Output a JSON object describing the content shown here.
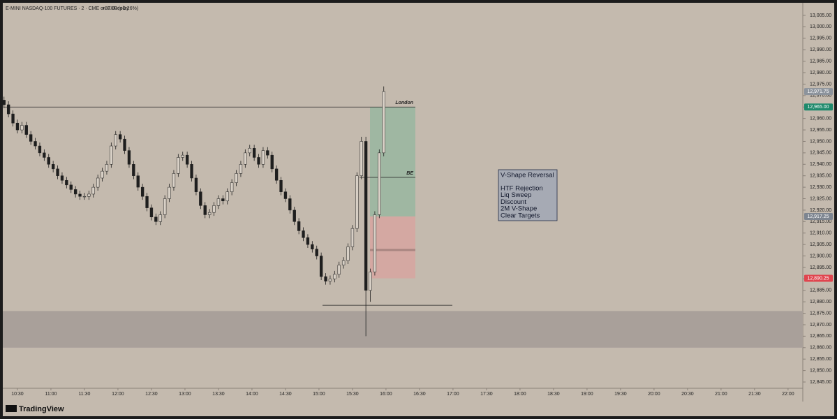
{
  "header": {
    "title": "E-MINI NASDAQ-100 FUTURES · 2 · CME on FXReplay",
    "change": "+33.00 (+0.26%)"
  },
  "chart_data": {
    "type": "candlestick",
    "ohlc": [
      [
        12968,
        12969.5,
        12964.5,
        12966
      ],
      [
        12966,
        12967.5,
        12960.5,
        12962
      ],
      [
        12962,
        12963.5,
        12956.5,
        12958
      ],
      [
        12958,
        12959.5,
        12953.5,
        12955
      ],
      [
        12955,
        12958.5,
        12953.5,
        12957
      ],
      [
        12957,
        12958.5,
        12951.5,
        12953
      ],
      [
        12953,
        12954.5,
        12948.5,
        12950
      ],
      [
        12950,
        12951.5,
        12946.5,
        12948
      ],
      [
        12948,
        12949.5,
        12943.5,
        12945
      ],
      [
        12945,
        12946.5,
        12941.5,
        12943
      ],
      [
        12943,
        12944.5,
        12938.5,
        12940
      ],
      [
        12940,
        12941.5,
        12936.5,
        12938
      ],
      [
        12938,
        12939.5,
        12933.5,
        12935
      ],
      [
        12935,
        12936.5,
        12931.5,
        12933
      ],
      [
        12933,
        12934.5,
        12929.5,
        12931
      ],
      [
        12931,
        12932.5,
        12927.5,
        12929
      ],
      [
        12929,
        12930.5,
        12925.5,
        12927
      ],
      [
        12927,
        12928.5,
        12924.5,
        12926
      ],
      [
        12926,
        12927.5,
        12924.5,
        12926
      ],
      [
        12926,
        12928.5,
        12924.5,
        12927
      ],
      [
        12927,
        12931.5,
        12925.5,
        12930
      ],
      [
        12930,
        12935.5,
        12928.5,
        12934
      ],
      [
        12934,
        12938.5,
        12932.5,
        12937
      ],
      [
        12937,
        12941.5,
        12935.5,
        12940
      ],
      [
        12940,
        12949.5,
        12938.5,
        12948
      ],
      [
        12948,
        12954.5,
        12946.5,
        12953
      ],
      [
        12953,
        12954.5,
        12949.5,
        12951
      ],
      [
        12951,
        12952.5,
        12944.5,
        12946
      ],
      [
        12946,
        12947.5,
        12938.5,
        12940
      ],
      [
        12940,
        12941.5,
        12933.5,
        12935
      ],
      [
        12935,
        12936.5,
        12928.5,
        12930
      ],
      [
        12930,
        12931.5,
        12924.5,
        12926
      ],
      [
        12926,
        12927.5,
        12919.5,
        12921
      ],
      [
        12921,
        12922.5,
        12915.5,
        12917
      ],
      [
        12917,
        12918.5,
        12913.5,
        12915
      ],
      [
        12915,
        12919.5,
        12913.5,
        12918
      ],
      [
        12918,
        12926.5,
        12916.5,
        12925
      ],
      [
        12925,
        12931.5,
        12923.5,
        12930
      ],
      [
        12930,
        12937.5,
        12928.5,
        12936
      ],
      [
        12936,
        12944.5,
        12934.5,
        12943
      ],
      [
        12943,
        12945.5,
        12941.5,
        12944
      ],
      [
        12944,
        12945.5,
        12938.5,
        12940
      ],
      [
        12940,
        12941.5,
        12932.5,
        12934
      ],
      [
        12934,
        12935.5,
        12926.5,
        12928
      ],
      [
        12928,
        12929.5,
        12920.5,
        12922
      ],
      [
        12922,
        12923.5,
        12916.5,
        12918
      ],
      [
        12918,
        12920.5,
        12916.5,
        12919
      ],
      [
        12919,
        12923.5,
        12917.5,
        12922
      ],
      [
        12922,
        12926.5,
        12920.5,
        12925
      ],
      [
        12925,
        12926.5,
        12922.5,
        12924
      ],
      [
        12924,
        12929.5,
        12922.5,
        12928
      ],
      [
        12928,
        12933.5,
        12926.5,
        12932
      ],
      [
        12932,
        12937.5,
        12930.5,
        12936
      ],
      [
        12936,
        12941.5,
        12934.5,
        12940
      ],
      [
        12940,
        12946.5,
        12938.5,
        12945
      ],
      [
        12945,
        12948.5,
        12943.5,
        12947
      ],
      [
        12947,
        12948.5,
        12941.5,
        12943
      ],
      [
        12943,
        12944.5,
        12938.5,
        12940
      ],
      [
        12940,
        12947.5,
        12938.5,
        12946
      ],
      [
        12946,
        12947.5,
        12942.5,
        12944
      ],
      [
        12944,
        12945.5,
        12936.5,
        12938
      ],
      [
        12938,
        12939.5,
        12931.5,
        12933
      ],
      [
        12933,
        12934.5,
        12926.5,
        12928
      ],
      [
        12928,
        12929.5,
        12923.5,
        12925
      ],
      [
        12925,
        12926.5,
        12918.5,
        12920
      ],
      [
        12920,
        12921.5,
        12913.5,
        12915
      ],
      [
        12915,
        12916.5,
        12909.5,
        12911
      ],
      [
        12911,
        12912.5,
        12906.5,
        12908
      ],
      [
        12908,
        12909.5,
        12903.5,
        12905
      ],
      [
        12905,
        12906.5,
        12901.5,
        12903
      ],
      [
        12903,
        12904.5,
        12898.5,
        12900
      ],
      [
        12900,
        12901.5,
        12889.5,
        12891
      ],
      [
        12891,
        12892.5,
        12887.5,
        12889
      ],
      [
        12889,
        12891.5,
        12887.5,
        12890
      ],
      [
        12890,
        12893.5,
        12888.5,
        12892
      ],
      [
        12892,
        12897.5,
        12890.5,
        12896
      ],
      [
        12896,
        12899.5,
        12894.5,
        12898
      ],
      [
        12898,
        12905.5,
        12896.5,
        12904
      ],
      [
        12904,
        12913.5,
        12902.5,
        12912
      ],
      [
        12912,
        12936.5,
        12910.5,
        12935
      ],
      [
        12935,
        12952,
        12933.5,
        12950
      ],
      [
        12950,
        12952,
        12865,
        12885
      ],
      [
        12885,
        12894.5,
        12880,
        12893
      ],
      [
        12893,
        12919.5,
        12891.5,
        12918
      ],
      [
        12918,
        12946.5,
        12916.5,
        12945
      ],
      [
        12945,
        12974,
        12943.5,
        12971.75
      ]
    ],
    "up_color": "#d8d0c6",
    "down_color": "#1e1e1e",
    "xlim": [
      -0.9,
      178.8
    ],
    "xticks": [
      {
        "value": 3,
        "label": "10:30"
      },
      {
        "value": 10.5,
        "label": "11:00"
      },
      {
        "value": 18,
        "label": "11:30"
      },
      {
        "value": 25.5,
        "label": "12:00"
      },
      {
        "value": 33,
        "label": "12:30"
      },
      {
        "value": 40.5,
        "label": "13:00"
      },
      {
        "value": 48,
        "label": "13:30"
      },
      {
        "value": 55.5,
        "label": "14:00"
      },
      {
        "value": 63,
        "label": "14:30"
      },
      {
        "value": 70.5,
        "label": "15:00"
      },
      {
        "value": 78,
        "label": "15:30"
      },
      {
        "value": 85.5,
        "label": "16:00"
      },
      {
        "value": 93,
        "label": "16:30"
      },
      {
        "value": 100.5,
        "label": "17:00"
      },
      {
        "value": 108,
        "label": "17:30"
      },
      {
        "value": 115.5,
        "label": "18:00"
      },
      {
        "value": 123,
        "label": "18:30"
      },
      {
        "value": 130.5,
        "label": "19:00"
      },
      {
        "value": 138,
        "label": "19:30"
      },
      {
        "value": 145.5,
        "label": "20:00"
      },
      {
        "value": 153,
        "label": "20:30"
      },
      {
        "value": 160.5,
        "label": "21:00"
      },
      {
        "value": 168,
        "label": "21:30"
      },
      {
        "value": 175.5,
        "label": "22:00"
      }
    ],
    "ylim": [
      12838,
      13011.7
    ],
    "yticks": [
      {
        "value": 12845,
        "label": "12,845.00"
      },
      {
        "value": 12850,
        "label": "12,850.00"
      },
      {
        "value": 12855,
        "label": "12,855.00"
      },
      {
        "value": 12860,
        "label": "12,860.00"
      },
      {
        "value": 12865,
        "label": "12,865.00"
      },
      {
        "value": 12870,
        "label": "12,870.00"
      },
      {
        "value": 12875,
        "label": "12,875.00"
      },
      {
        "value": 12880,
        "label": "12,880.00"
      },
      {
        "value": 12885,
        "label": "12,885.00"
      },
      {
        "value": 12890,
        "label": "12,890.00"
      },
      {
        "value": 12895,
        "label": "12,895.00"
      },
      {
        "value": 12900,
        "label": "12,900.00"
      },
      {
        "value": 12905,
        "label": "12,905.00"
      },
      {
        "value": 12910,
        "label": "12,910.00"
      },
      {
        "value": 12915,
        "label": "12,915.00"
      },
      {
        "value": 12920,
        "label": "12,920.00"
      },
      {
        "value": 12925,
        "label": "12,925.00"
      },
      {
        "value": 12930,
        "label": "12,930.00"
      },
      {
        "value": 12935,
        "label": "12,935.00"
      },
      {
        "value": 12940,
        "label": "12,940.00"
      },
      {
        "value": 12945,
        "label": "12,945.00"
      },
      {
        "value": 12950,
        "label": "12,950.00"
      },
      {
        "value": 12955,
        "label": "12,955.00"
      },
      {
        "value": 12960,
        "label": "12,960.00"
      },
      {
        "value": 12965,
        "label": "12,965.00"
      },
      {
        "value": 12970,
        "label": "12,970.00"
      },
      {
        "value": 12975,
        "label": "12,975.00"
      },
      {
        "value": 12980,
        "label": "12,980.00"
      },
      {
        "value": 12985,
        "label": "12,985.00"
      },
      {
        "value": 12990,
        "label": "12,990.00"
      },
      {
        "value": 12995,
        "label": "12,995.00"
      },
      {
        "value": 13000,
        "label": "13,000.00"
      },
      {
        "value": 13005,
        "label": "13,005.00"
      }
    ],
    "grid": false,
    "price_tags": [
      {
        "value": 12971.75,
        "label": "12,971.75",
        "color": "#8c939c"
      },
      {
        "value": 12965,
        "label": "12,965.00",
        "color": "#1f8a6c"
      },
      {
        "value": 12917.25,
        "label": "12,917.25",
        "color": "#7d8590"
      },
      {
        "value": 12890.25,
        "label": "12,890.25",
        "color": "#e0454f"
      }
    ],
    "levels": [
      {
        "label": "London",
        "value": 12965
      },
      {
        "label": "BE",
        "value": 12934.3
      }
    ],
    "sweep_level": 12878.5,
    "stop_mid": 12902.6,
    "zone": [
      12860,
      12876
    ],
    "note": {
      "title": "V-Shape Reversal",
      "lines": [
        "HTF Rejection",
        "Liq Sweep",
        "Discount",
        "2M V-Shape",
        "Clear Targets"
      ]
    }
  },
  "footer": {
    "brand": "TradingView"
  }
}
